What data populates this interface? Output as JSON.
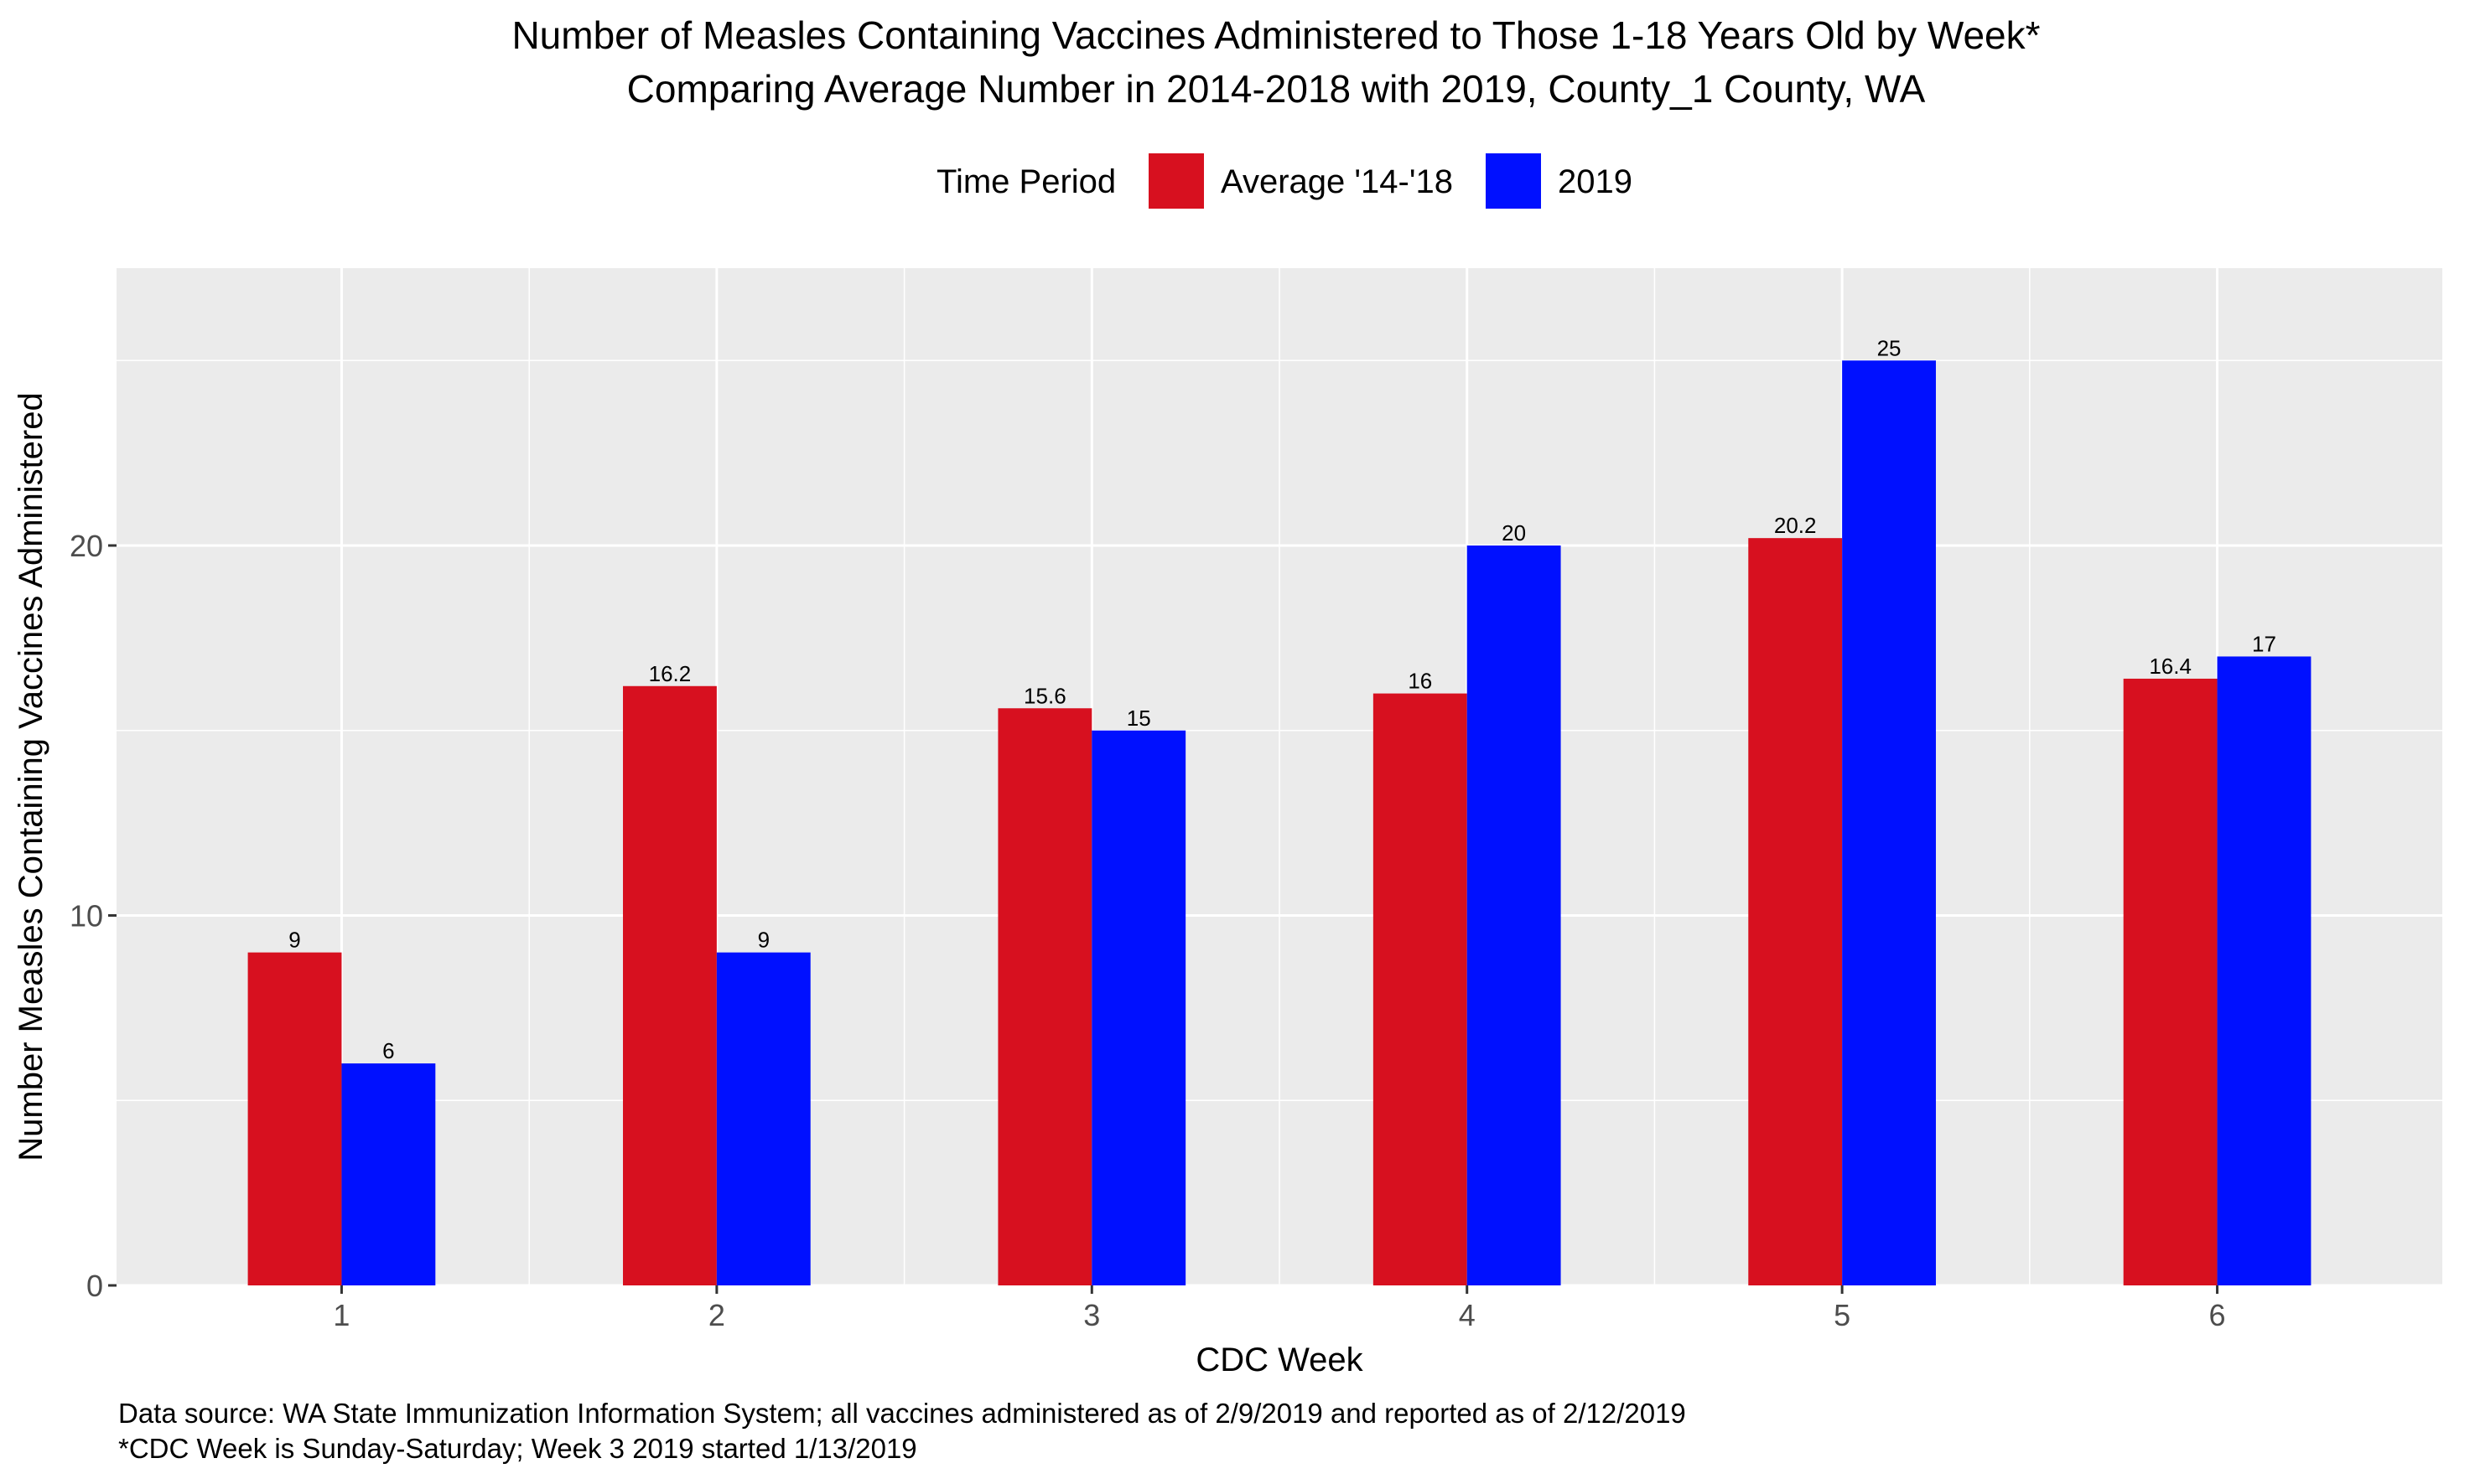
{
  "chart_data": {
    "type": "bar",
    "title": "Number of Measles Containing Vaccines Administered to Those 1-18 Years Old by Week*",
    "subtitle": "Comparing Average Number in 2014-2018 with 2019, County_1 County, WA",
    "xlabel": "CDC Week",
    "ylabel": "Number Measles Containing Vaccines Administered",
    "legend_title": "Time Period",
    "legend_position": "top",
    "categories": [
      "1",
      "2",
      "3",
      "4",
      "5",
      "6"
    ],
    "series": [
      {
        "name": "Average '14-'18",
        "color": "#D7101F",
        "values": [
          9,
          16.2,
          15.6,
          16,
          20.2,
          16.4
        ],
        "labels": [
          "9",
          "16.2",
          "15.6",
          "16",
          "20.2",
          "16.4"
        ]
      },
      {
        "name": "2019",
        "color": "#0010FF",
        "values": [
          6,
          9,
          15,
          20,
          25,
          17
        ],
        "labels": [
          "6",
          "9",
          "15",
          "20",
          "25",
          "17"
        ]
      }
    ],
    "ylim": [
      0,
      25
    ],
    "yticks": [
      "0",
      "10",
      "20"
    ],
    "grid": true,
    "panel_background": "#EBEBEB",
    "captions": [
      "Data source: WA State Immunization Information System; all vaccines administered as of 2/9/2019 and reported as of 2/12/2019",
      "*CDC Week is Sunday-Saturday; Week 3 2019 started 1/13/2019"
    ]
  }
}
